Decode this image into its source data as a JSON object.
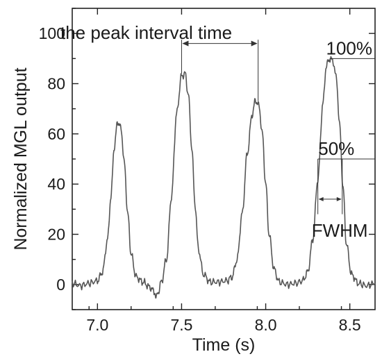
{
  "chart_data": {
    "type": "line",
    "title": "",
    "xlabel": "Time (s)",
    "ylabel": "Normalized MGL output",
    "xlim": [
      6.85,
      8.65
    ],
    "ylim": [
      -10,
      110
    ],
    "x_ticks": [
      7.0,
      7.5,
      8.0,
      8.5
    ],
    "x_tick_labels": [
      "7.0",
      "7.5",
      "8.0",
      "8.5"
    ],
    "y_ticks": [
      0,
      20,
      40,
      60,
      80,
      100
    ],
    "y_tick_labels": [
      "0",
      "20",
      "40",
      "60",
      "80",
      "100"
    ],
    "grid": false,
    "legend": "none",
    "series": [
      {
        "color": "#555555",
        "points": [
          [
            6.85,
            0.5
          ],
          [
            6.9,
            -0.5
          ],
          [
            6.95,
            0.5
          ],
          [
            7.0,
            1.5
          ],
          [
            7.03,
            5
          ],
          [
            7.06,
            18
          ],
          [
            7.08,
            35
          ],
          [
            7.1,
            55
          ],
          [
            7.12,
            65
          ],
          [
            7.14,
            62
          ],
          [
            7.16,
            48
          ],
          [
            7.18,
            28
          ],
          [
            7.2,
            12
          ],
          [
            7.23,
            3
          ],
          [
            7.27,
            1
          ],
          [
            7.31,
            -1
          ],
          [
            7.34,
            -3
          ],
          [
            7.35,
            -5.5
          ],
          [
            7.36,
            -3
          ],
          [
            7.38,
            1
          ],
          [
            7.41,
            10
          ],
          [
            7.44,
            35
          ],
          [
            7.47,
            68
          ],
          [
            7.5,
            83
          ],
          [
            7.52,
            84
          ],
          [
            7.54,
            76
          ],
          [
            7.56,
            55
          ],
          [
            7.58,
            32
          ],
          [
            7.6,
            14
          ],
          [
            7.63,
            4
          ],
          [
            7.67,
            1
          ],
          [
            7.72,
            1
          ],
          [
            7.77,
            1.5
          ],
          [
            7.8,
            3
          ],
          [
            7.83,
            10
          ],
          [
            7.86,
            28
          ],
          [
            7.89,
            52
          ],
          [
            7.92,
            68
          ],
          [
            7.94,
            73.5
          ],
          [
            7.96,
            71
          ],
          [
            7.98,
            60
          ],
          [
            8.0,
            40
          ],
          [
            8.02,
            20
          ],
          [
            8.05,
            6
          ],
          [
            8.08,
            1
          ],
          [
            8.13,
            0
          ],
          [
            8.18,
            0.5
          ],
          [
            8.22,
            1.5
          ],
          [
            8.25,
            5
          ],
          [
            8.28,
            18
          ],
          [
            8.31,
            42
          ],
          [
            8.34,
            72
          ],
          [
            8.36,
            87
          ],
          [
            8.38,
            90
          ],
          [
            8.4,
            89
          ],
          [
            8.42,
            82
          ],
          [
            8.44,
            63
          ],
          [
            8.46,
            38
          ],
          [
            8.48,
            16
          ],
          [
            8.51,
            4
          ],
          [
            8.55,
            0.5
          ],
          [
            8.6,
            -0.5
          ],
          [
            8.65,
            0.5
          ]
        ]
      }
    ],
    "annotations": {
      "peak_interval_label": "the peak interval time",
      "peak_interval_from_x": 7.5,
      "peak_interval_to_x": 7.955,
      "peak_interval_arrow_y": 96,
      "label_100": "100%",
      "level_100_y": 90,
      "level_100_from_x": 8.38,
      "label_50": "50%",
      "level_50_y": 50,
      "level_50_from_x": 8.31,
      "fwhm_label": "FWHM",
      "fwhm_from_x": 8.31,
      "fwhm_to_x": 8.455,
      "fwhm_arrow_y": 34
    }
  }
}
